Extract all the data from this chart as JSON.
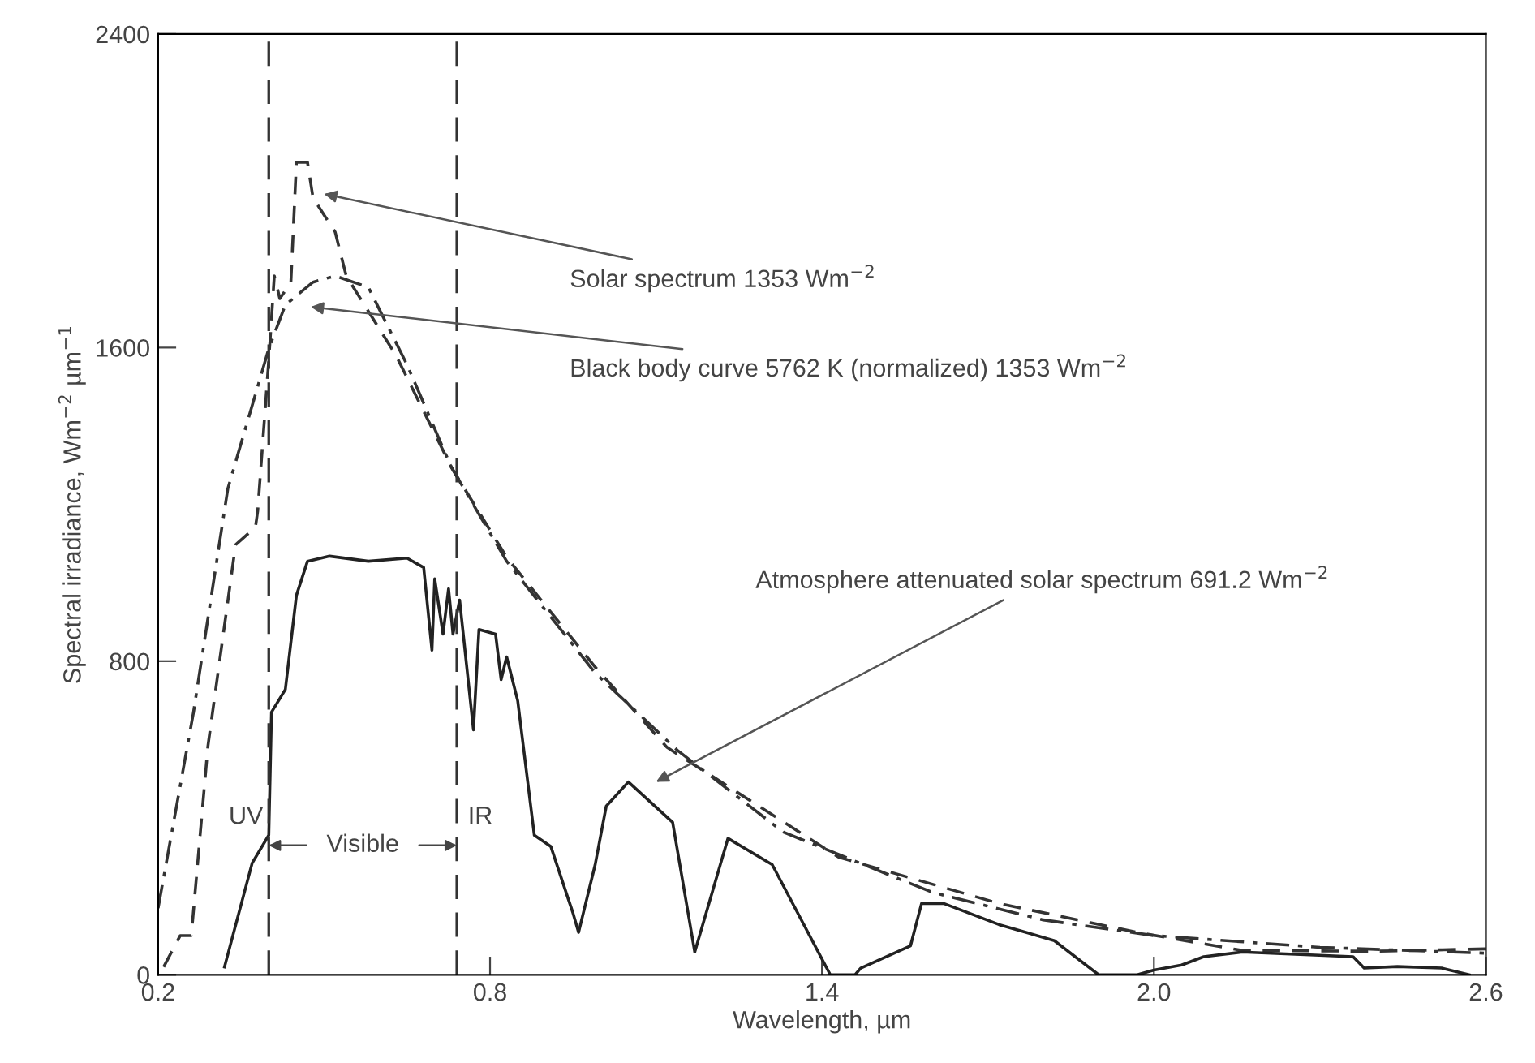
{
  "chart_data": {
    "type": "line",
    "xlabel": "Wavelength, µm",
    "ylabel": "Spectral irradiance, Wm$^{−2}$ µm$^{−1}$",
    "xlim": [
      0.2,
      2.6
    ],
    "xticks": [
      {
        "value": 0.2,
        "label": "0.2"
      },
      {
        "value": 0.8,
        "label": "0.8"
      },
      {
        "value": 1.4,
        "label": "1.4"
      },
      {
        "value": 2.0,
        "label": "2.0"
      },
      {
        "value": 2.6,
        "label": "2.6"
      }
    ],
    "ylim": [
      0,
      2400
    ],
    "yticks": [
      0,
      800,
      1600,
      2400
    ],
    "grid": false,
    "legend": false,
    "marker": "none",
    "series": [
      {
        "color": "#333333",
        "line_style": "dashed",
        "x": [
          0.21,
          0.24,
          0.26,
          0.29,
          0.34,
          0.376,
          0.38,
          0.4,
          0.41,
          0.42,
          0.44,
          0.45,
          0.47,
          0.48,
          0.52,
          0.54,
          0.63,
          0.73,
          0.83,
          0.99,
          1.12,
          1.43,
          1.72,
          1.97,
          2.16,
          2.4,
          2.6
        ],
        "values": [
          20,
          100,
          100,
          583,
          1097,
          1142,
          1183,
          1568,
          1783,
          1725,
          1767,
          2073,
          2073,
          1982,
          1895,
          1783,
          1580,
          1295,
          1065,
          785,
          580,
          300,
          182,
          108,
          62,
          60,
          66
        ]
      },
      {
        "color": "#333333",
        "line_style": "dashdot",
        "x": [
          0.2,
          0.264,
          0.326,
          0.4,
          0.43,
          0.48,
          0.52,
          0.58,
          0.65,
          0.73,
          0.83,
          0.99,
          1.14,
          1.33,
          1.6,
          1.8,
          2.0,
          2.3,
          2.6
        ],
        "values": [
          170,
          670,
          1240,
          1597,
          1709,
          1767,
          1783,
          1754,
          1556,
          1295,
          1055,
          770,
          571,
          364,
          210,
          140,
          100,
          70,
          55
        ]
      },
      {
        "color": "#222222",
        "line_style": "solid",
        "x": [
          0.32,
          0.37,
          0.4,
          0.405,
          0.43,
          0.45,
          0.47,
          0.51,
          0.58,
          0.65,
          0.68,
          0.695,
          0.7,
          0.715,
          0.725,
          0.733,
          0.745,
          0.77,
          0.78,
          0.81,
          0.82,
          0.83,
          0.85,
          0.88,
          0.91,
          0.94,
          0.95,
          0.96,
          0.99,
          1.01,
          1.05,
          1.13,
          1.17,
          1.23,
          1.31,
          1.415,
          1.46,
          1.47,
          1.56,
          1.58,
          1.62,
          1.72,
          1.82,
          1.9,
          1.97,
          2.0,
          2.05,
          2.09,
          2.16,
          2.36,
          2.38,
          2.44,
          2.52,
          2.57
        ],
        "values": [
          20,
          285,
          356,
          670,
          728,
          968,
          1055,
          1068,
          1055,
          1063,
          1039,
          828,
          1010,
          869,
          985,
          869,
          956,
          625,
          881,
          869,
          753,
          811,
          699,
          356,
          327,
          199,
          157,
          108,
          281,
          430,
          492,
          389,
          58,
          348,
          281,
          0,
          0,
          17,
          74,
          182,
          182,
          128,
          87,
          0,
          0,
          12,
          25,
          46,
          58,
          46,
          17,
          21,
          17,
          0
        ]
      }
    ],
    "ref_lines": [
      {
        "axis": "x",
        "value": 0.4,
        "line_style": "dashed"
      },
      {
        "axis": "x",
        "value": 0.74,
        "line_style": "dashed"
      }
    ],
    "annotations": [
      "Solar spectrum 1353 Wm$^{−2}$",
      "Black body curve 5762 K (normalized) 1353 Wm$^{−2}$",
      "Atmosphere attenuated solar spectrum 691.2 Wm$^{−2}$",
      "UV",
      {
        "text": "Visible",
        "x": 0.4,
        "y": 330
      },
      "IR"
    ]
  }
}
